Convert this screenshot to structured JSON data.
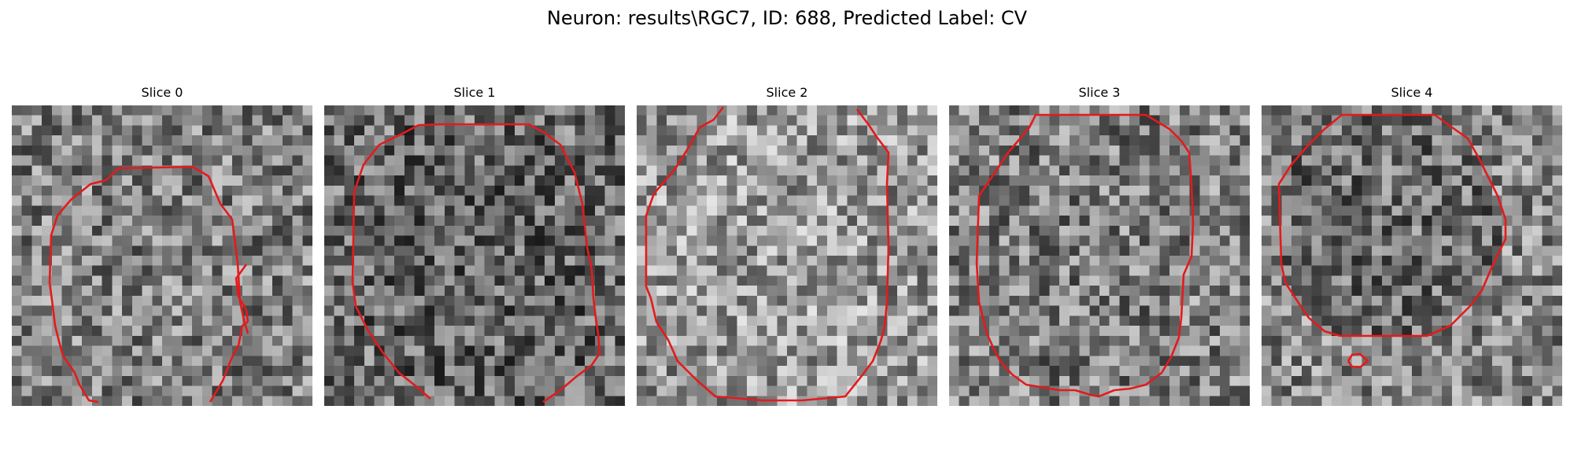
{
  "figure": {
    "title": "Neuron: results\\RGC7, ID: 688, Predicted Label: CV",
    "contour_color": "#e41a1c"
  },
  "panels": [
    {
      "title": "Slice 0",
      "tone": 128,
      "seed": 11,
      "inner_delta": 0
    },
    {
      "title": "Slice 1",
      "tone": 110,
      "seed": 23,
      "inner_delta": -10
    },
    {
      "title": "Slice 2",
      "tone": 150,
      "seed": 37,
      "inner_delta": 5
    },
    {
      "title": "Slice 3",
      "tone": 130,
      "seed": 41,
      "inner_delta": -5
    },
    {
      "title": "Slice 4",
      "tone": 135,
      "seed": 53,
      "inner_delta": -25
    }
  ]
}
